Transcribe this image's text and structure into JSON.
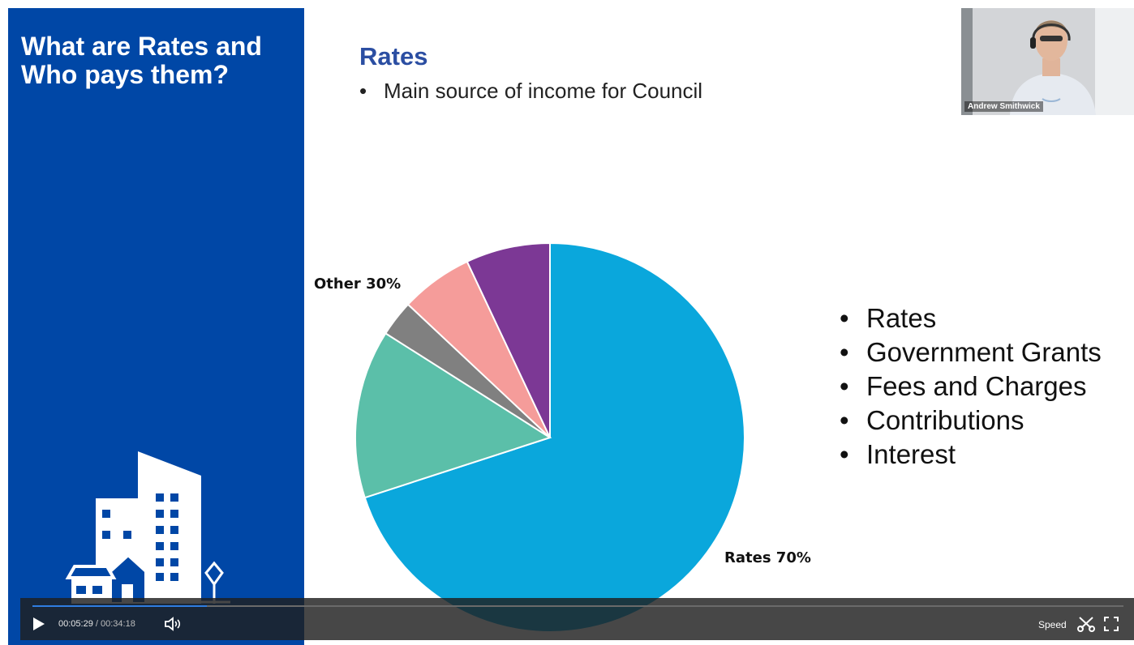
{
  "sidebar": {
    "title": "What are Rates and Who pays them?"
  },
  "slide": {
    "heading": "Rates",
    "subtitle_bullet": "•",
    "subtitle": "Main source of income for Council",
    "list_bullet": "•",
    "list": [
      "Rates",
      "Government Grants",
      "Fees and Charges",
      "Contributions",
      "Interest"
    ]
  },
  "chart_data": {
    "type": "pie",
    "labels": [
      "Other 30%",
      "Rates 70%"
    ],
    "slices": [
      {
        "value": 70,
        "color": "#0aa7dc"
      },
      {
        "value": 14,
        "color": "#5bbfa9"
      },
      {
        "value": 3,
        "color": "#808080"
      },
      {
        "value": 6,
        "color": "#f59c9a"
      },
      {
        "value": 7,
        "color": "#7c3895"
      }
    ]
  },
  "webcam": {
    "name": "Andrew Smithwick"
  },
  "player": {
    "current_time": "00:05:29",
    "separator": "/",
    "total_time": "00:34:18",
    "progress": 0.16,
    "speed_label": "Speed"
  }
}
